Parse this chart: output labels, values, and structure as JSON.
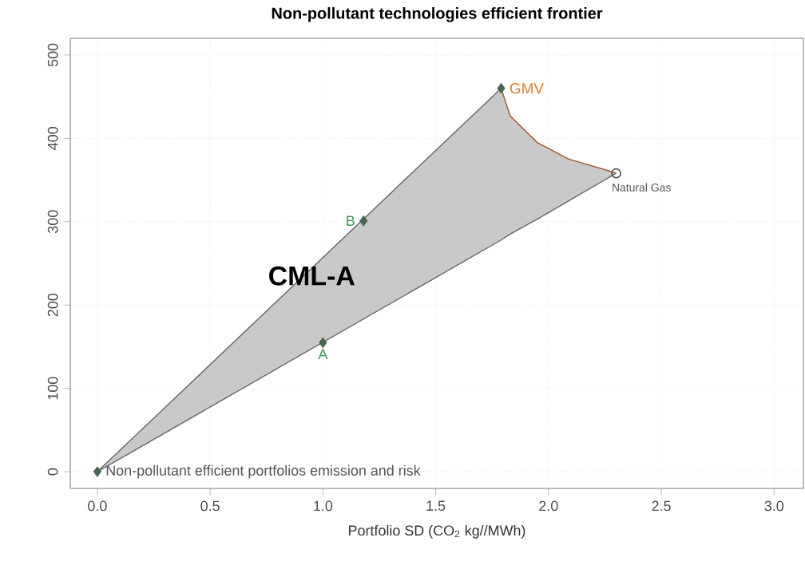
{
  "chart_data": {
    "type": "line",
    "title": "Non-pollutant technologies efficient frontier",
    "xlabel": "Portfolio SD (CO$_{2}$ kg//MWh)",
    "xlim": [
      -0.12,
      3.13
    ],
    "ylim": [
      -20,
      520
    ],
    "xticks": [
      {
        "value": 0,
        "label": "0.0"
      },
      0.5,
      {
        "value": 1,
        "label": "1.0"
      },
      1.5,
      {
        "value": 2,
        "label": "2.0"
      },
      2.5,
      {
        "value": 3,
        "label": "3.0"
      }
    ],
    "yticks": [
      0,
      100,
      200,
      300,
      400,
      500
    ],
    "grid": true,
    "series": [
      {
        "color": "#666666",
        "x": [
          0,
          1.79
        ],
        "values": [
          0,
          460
        ]
      },
      {
        "color": "#666666",
        "x": [
          0,
          1.79,
          1.83,
          1.95,
          2.09,
          2.28,
          2.3
        ],
        "values": [
          0,
          278,
          285,
          303,
          325,
          355,
          358
        ],
        "lower": [
          0,
          278,
          285,
          303,
          325,
          355,
          358
        ],
        "upper": [
          0,
          460,
          427,
          395,
          375,
          360,
          358
        ]
      },
      {
        "color": "#a0522d",
        "x": [
          1.79,
          1.83,
          1.95,
          2.09,
          2.28,
          2.3
        ],
        "values": [
          460,
          427,
          395,
          375,
          360,
          358
        ]
      },
      {
        "type": "scatter",
        "color": "#4a6652",
        "marker": "diamond",
        "x": [
          0,
          1.0,
          1.18,
          1.79
        ],
        "values": [
          0,
          155,
          301,
          460
        ]
      },
      {
        "type": "scatter",
        "color": "#555555",
        "marker": "circle",
        "x": [
          2.3
        ],
        "values": [
          358
        ]
      }
    ],
    "annotations": [
      {
        "text": "A",
        "x": 1.0,
        "y": 155
      },
      {
        "text": "B",
        "x": 1.18,
        "y": 301
      },
      {
        "text": "GMV",
        "x": 1.79,
        "y": 460
      },
      {
        "text": "Natural Gas",
        "x": 2.3,
        "y": 358
      },
      {
        "text": "Non-pollutant efficient portfolios emission and risk",
        "x": 0,
        "y": 0
      },
      {
        "text": "CML-A",
        "x": 0.95,
        "y": 235
      }
    ]
  }
}
